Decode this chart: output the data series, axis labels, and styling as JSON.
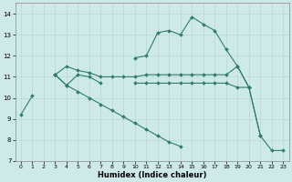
{
  "xlabel": "Humidex (Indice chaleur)",
  "x_values": [
    0,
    1,
    2,
    3,
    4,
    5,
    6,
    7,
    8,
    9,
    10,
    11,
    12,
    13,
    14,
    15,
    16,
    17,
    18,
    19,
    20,
    21,
    22,
    23
  ],
  "line1": [
    9.2,
    10.1,
    null,
    11.1,
    10.6,
    11.1,
    11.0,
    10.7,
    null,
    null,
    11.9,
    12.0,
    13.1,
    13.2,
    13.0,
    13.85,
    13.5,
    13.2,
    12.3,
    11.5,
    10.5,
    8.2,
    7.5,
    7.5
  ],
  "line2": [
    null,
    null,
    null,
    11.1,
    11.5,
    11.3,
    11.2,
    11.0,
    11.0,
    11.0,
    11.0,
    11.1,
    11.1,
    11.1,
    11.1,
    11.1,
    11.1,
    11.1,
    11.1,
    11.5,
    10.5,
    null,
    null,
    null
  ],
  "line3": [
    null,
    null,
    null,
    11.1,
    10.6,
    10.3,
    10.0,
    9.7,
    9.4,
    9.1,
    8.8,
    8.5,
    8.2,
    7.9,
    7.7,
    null,
    null,
    null,
    null,
    null,
    null,
    null,
    null,
    null
  ],
  "line4": [
    null,
    null,
    null,
    null,
    null,
    null,
    null,
    null,
    null,
    null,
    10.7,
    10.7,
    10.7,
    10.7,
    10.7,
    10.7,
    10.7,
    10.7,
    10.7,
    10.5,
    10.5,
    8.2,
    null,
    null
  ],
  "color": "#2e7d6e",
  "bg_color": "#ceeae8",
  "grid_color": "#b8d8d5",
  "ylim": [
    7,
    14.5
  ],
  "xlim": [
    -0.5,
    23.5
  ],
  "yticks": [
    7,
    8,
    9,
    10,
    11,
    12,
    13,
    14
  ],
  "xticks": [
    0,
    1,
    2,
    3,
    4,
    5,
    6,
    7,
    8,
    9,
    10,
    11,
    12,
    13,
    14,
    15,
    16,
    17,
    18,
    19,
    20,
    21,
    22,
    23
  ]
}
